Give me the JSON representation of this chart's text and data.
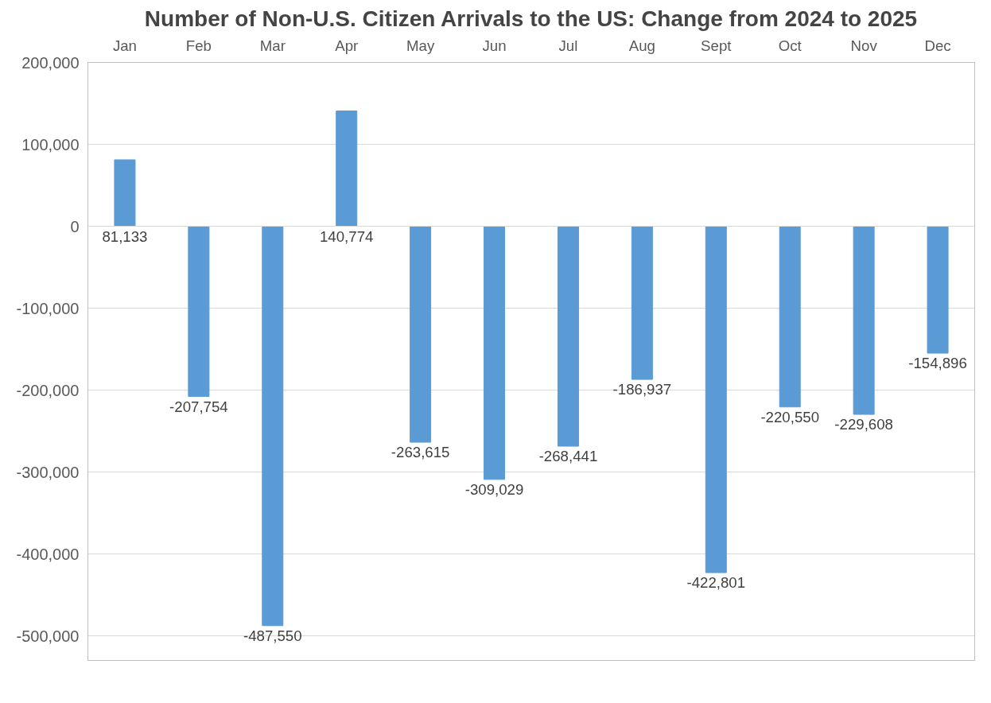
{
  "chart_data": {
    "type": "bar",
    "title": "Number of Non-U.S. Citizen Arrivals to the US: Change from 2024 to 2025",
    "categories": [
      "Jan",
      "Feb",
      "Mar",
      "Apr",
      "May",
      "Jun",
      "Jul",
      "Aug",
      "Sept",
      "Oct",
      "Nov",
      "Dec"
    ],
    "values": [
      81133,
      -207754,
      -487550,
      140774,
      -263615,
      -309029,
      -268441,
      -186937,
      -422801,
      -220550,
      -229608,
      -154896
    ],
    "color": "#5b9bd5",
    "ylim": [
      -530000,
      200000
    ],
    "yticks": [
      {
        "value": -500000,
        "label": "-500,000"
      },
      {
        "value": -400000,
        "label": "-400,000"
      },
      {
        "value": -300000,
        "label": "-300,000"
      },
      {
        "value": -200000,
        "label": "-200,000"
      },
      {
        "value": -100000,
        "label": "-100,000"
      },
      0,
      {
        "value": 100000,
        "label": "100,000"
      },
      {
        "value": 200000,
        "label": "200,000"
      }
    ],
    "value_labels": [
      "81,133",
      "-207,754",
      "-487,550",
      "140,774",
      "-263,615",
      "-309,029",
      "-268,441",
      "-186,937",
      "-422,801",
      "-220,550",
      "-229,608",
      "-154,896"
    ],
    "grid": "y"
  }
}
